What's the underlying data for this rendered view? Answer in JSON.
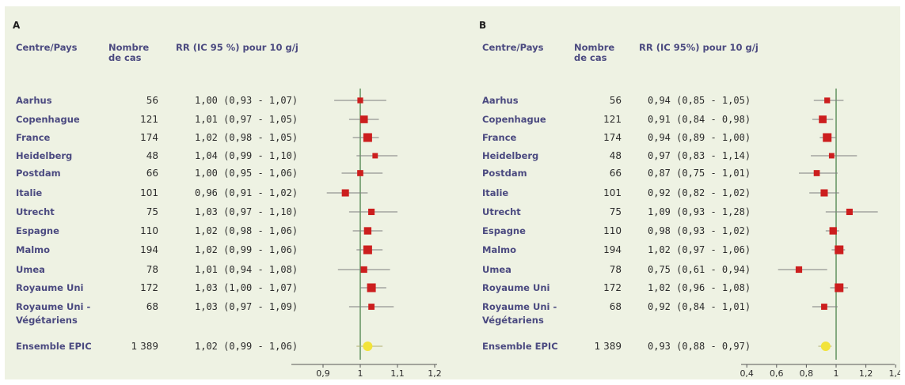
{
  "colors": {
    "background": "#eef2e3",
    "header_text": "#4b4a80",
    "marker": "#cc1e1e",
    "summary_marker": "#f2e33a",
    "axis": "#3f7a3f",
    "whisker": "#7f7f7f"
  },
  "headers": {
    "centre": "Centre/Pays",
    "cases_line1": "Nombre",
    "cases_line2": "de cas"
  },
  "chart_data": [
    {
      "type": "forest",
      "panel_label": "A",
      "column_header": "RR (IC 95 %) pour 10 g/j",
      "x_ticks": [
        "0,9",
        "1",
        "1,1",
        "1,2"
      ],
      "xlim": [
        0.8,
        1.2
      ],
      "reference_line": 1.0,
      "rows": [
        {
          "name": [
            "Aarhus"
          ],
          "cases": "56",
          "label": "1,00 (0,93 - 1,07)",
          "rr": 1.0,
          "lo": 0.93,
          "hi": 1.07
        },
        {
          "name": [
            "Copenhague"
          ],
          "cases": "121",
          "label": "1,01 (0,97 - 1,05)",
          "rr": 1.01,
          "lo": 0.97,
          "hi": 1.05
        },
        {
          "name": [
            "France"
          ],
          "cases": "174",
          "label": "1,02 (0,98 - 1,05)",
          "rr": 1.02,
          "lo": 0.98,
          "hi": 1.05
        },
        {
          "name": [
            "Heidelberg"
          ],
          "cases": "48",
          "label": "1,04 (0,99 - 1,10)",
          "rr": 1.04,
          "lo": 0.99,
          "hi": 1.1
        },
        {
          "name": [
            "Postdam"
          ],
          "cases": "66",
          "label": "1,00 (0,95 - 1,06)",
          "rr": 1.0,
          "lo": 0.95,
          "hi": 1.06
        },
        {
          "name": [
            "Italie"
          ],
          "cases": "101",
          "label": "0,96 (0,91 - 1,02)",
          "rr": 0.96,
          "lo": 0.91,
          "hi": 1.02
        },
        {
          "name": [
            "Utrecht"
          ],
          "cases": "75",
          "label": "1,03 (0,97 - 1,10)",
          "rr": 1.03,
          "lo": 0.97,
          "hi": 1.1
        },
        {
          "name": [
            "Espagne"
          ],
          "cases": "110",
          "label": "1,02 (0,98 - 1,06)",
          "rr": 1.02,
          "lo": 0.98,
          "hi": 1.06
        },
        {
          "name": [
            "Malmo"
          ],
          "cases": "194",
          "label": "1,02 (0,99 - 1,06)",
          "rr": 1.02,
          "lo": 0.99,
          "hi": 1.06
        },
        {
          "name": [
            "Umea"
          ],
          "cases": "78",
          "label": "1,01 (0,94 - 1,08)",
          "rr": 1.01,
          "lo": 0.94,
          "hi": 1.08
        },
        {
          "name": [
            "Royaume Uni"
          ],
          "cases": "172",
          "label": "1,03 (1,00 - 1,07)",
          "rr": 1.03,
          "lo": 1.0,
          "hi": 1.07
        },
        {
          "name": [
            "Royaume Uni -",
            "Végétariens"
          ],
          "cases": "68",
          "label": "1,03 (0,97 - 1,09)",
          "rr": 1.03,
          "lo": 0.97,
          "hi": 1.09
        },
        {
          "name": [
            "Ensemble EPIC"
          ],
          "cases": "1 389",
          "label": "1,02 (0,99 - 1,06)",
          "rr": 1.02,
          "lo": 0.99,
          "hi": 1.06,
          "summary": true
        }
      ]
    },
    {
      "type": "forest",
      "panel_label": "B",
      "column_header": "RR (IC 95%) pour 10 g/j",
      "x_ticks": [
        "0,4",
        "0,6",
        "0,8",
        "1",
        "1,2",
        "1,4"
      ],
      "xlim": [
        0.4,
        1.4
      ],
      "reference_line": 1.0,
      "rows": [
        {
          "name": [
            "Aarhus"
          ],
          "cases": "56",
          "label": "0,94 (0,85 - 1,05)",
          "rr": 0.94,
          "lo": 0.85,
          "hi": 1.05
        },
        {
          "name": [
            "Copenhague"
          ],
          "cases": "121",
          "label": "0,91 (0,84 - 0,98)",
          "rr": 0.91,
          "lo": 0.84,
          "hi": 0.98
        },
        {
          "name": [
            "France"
          ],
          "cases": "174",
          "label": "0,94 (0,89 - 1,00)",
          "rr": 0.94,
          "lo": 0.89,
          "hi": 1.0
        },
        {
          "name": [
            "Heidelberg"
          ],
          "cases": "48",
          "label": "0,97 (0,83 - 1,14)",
          "rr": 0.97,
          "lo": 0.83,
          "hi": 1.14
        },
        {
          "name": [
            "Postdam"
          ],
          "cases": "66",
          "label": "0,87 (0,75 - 1,01)",
          "rr": 0.87,
          "lo": 0.75,
          "hi": 1.01
        },
        {
          "name": [
            "Italie"
          ],
          "cases": "101",
          "label": "0,92 (0,82 - 1,02)",
          "rr": 0.92,
          "lo": 0.82,
          "hi": 1.02
        },
        {
          "name": [
            "Utrecht"
          ],
          "cases": "75",
          "label": "1,09 (0,93 - 1,28)",
          "rr": 1.09,
          "lo": 0.93,
          "hi": 1.28
        },
        {
          "name": [
            "Espagne"
          ],
          "cases": "110",
          "label": "0,98 (0,93 - 1,02)",
          "rr": 0.98,
          "lo": 0.93,
          "hi": 1.02
        },
        {
          "name": [
            "Malmo"
          ],
          "cases": "194",
          "label": "1,02 (0,97 - 1,06)",
          "rr": 1.02,
          "lo": 0.97,
          "hi": 1.06
        },
        {
          "name": [
            "Umea"
          ],
          "cases": "78",
          "label": "0,75 (0,61 - 0,94)",
          "rr": 0.75,
          "lo": 0.61,
          "hi": 0.94
        },
        {
          "name": [
            "Royaume Uni"
          ],
          "cases": "172",
          "label": "1,02 (0,96 - 1,08)",
          "rr": 1.02,
          "lo": 0.96,
          "hi": 1.08
        },
        {
          "name": [
            "Royaume Uni -",
            "Végétariens"
          ],
          "cases": "68",
          "label": "0,92 (0,84 - 1,01)",
          "rr": 0.92,
          "lo": 0.84,
          "hi": 1.01
        },
        {
          "name": [
            "Ensemble EPIC"
          ],
          "cases": "1 389",
          "label": "0,93 (0,88 - 0,97)",
          "rr": 0.93,
          "lo": 0.88,
          "hi": 0.97,
          "summary": true
        }
      ]
    }
  ]
}
